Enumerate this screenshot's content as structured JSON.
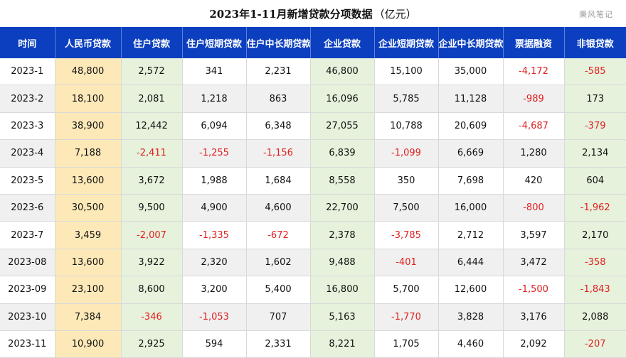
{
  "title": "2023年1-11月新增贷款分项数据",
  "unit": "（亿元）",
  "watermark": "秉风笔记",
  "chart_data": {
    "type": "table",
    "columns": [
      "时间",
      "人民币贷款",
      "住户贷款",
      "住户短期贷款",
      "住户中长期贷款",
      "企业贷款",
      "企业短期贷款",
      "企业中长期贷款",
      "票据融资",
      "非银贷款"
    ],
    "rows": [
      [
        "2023-1",
        "48,800",
        "2,572",
        "341",
        "2,231",
        "46,800",
        "15,100",
        "35,000",
        "-4,172",
        "-585"
      ],
      [
        "2023-2",
        "18,100",
        "2,081",
        "1,218",
        "863",
        "16,096",
        "5,785",
        "11,128",
        "-989",
        "173"
      ],
      [
        "2023-3",
        "38,900",
        "12,442",
        "6,094",
        "6,348",
        "27,055",
        "10,788",
        "20,609",
        "-4,687",
        "-379"
      ],
      [
        "2023-4",
        "7,188",
        "-2,411",
        "-1,255",
        "-1,156",
        "6,839",
        "-1,099",
        "6,669",
        "1,280",
        "2,134"
      ],
      [
        "2023-5",
        "13,600",
        "3,672",
        "1,988",
        "1,684",
        "8,558",
        "350",
        "7,698",
        "420",
        "604"
      ],
      [
        "2023-6",
        "30,500",
        "9,500",
        "4,900",
        "4,600",
        "22,700",
        "7,500",
        "16,000",
        "-800",
        "-1,962"
      ],
      [
        "2023-7",
        "3,459",
        "-2,007",
        "-1,335",
        "-672",
        "2,378",
        "-3,785",
        "2,712",
        "3,597",
        "2,170"
      ],
      [
        "2023-08",
        "13,600",
        "3,922",
        "2,320",
        "1,602",
        "9,488",
        "-401",
        "6,444",
        "3,472",
        "-358"
      ],
      [
        "2023-09",
        "23,100",
        "8,600",
        "3,200",
        "5,400",
        "16,800",
        "5,700",
        "12,600",
        "-1,500",
        "-1,843"
      ],
      [
        "2023-10",
        "7,384",
        "-346",
        "-1,053",
        "707",
        "5,163",
        "-1,770",
        "3,828",
        "3,176",
        "2,088"
      ],
      [
        "2023-11",
        "10,900",
        "2,925",
        "594",
        "2,331",
        "8,221",
        "1,705",
        "4,460",
        "2,092",
        "-207"
      ]
    ]
  }
}
